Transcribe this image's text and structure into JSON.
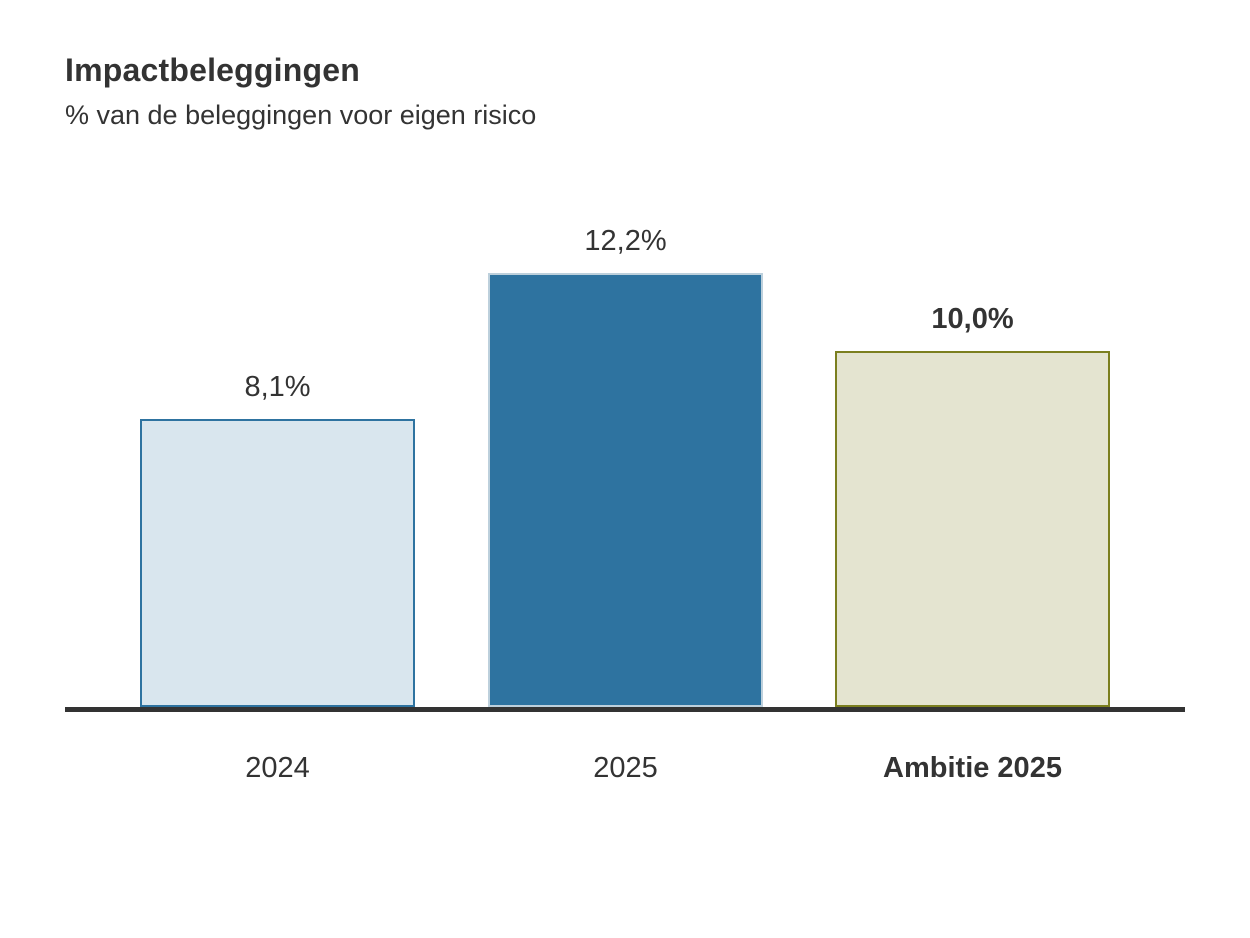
{
  "chart_data": {
    "type": "bar",
    "title": "Impactbeleggingen",
    "subtitle": "% van de beleggingen voor eigen risico",
    "xlabel": "",
    "ylabel": "% van de beleggingen voor eigen risico",
    "categories": [
      "2024",
      "2025",
      "Ambitie 2025"
    ],
    "values": [
      8.1,
      12.2,
      10.0
    ],
    "value_labels": [
      "8,1%",
      "12,2%",
      "10,0%"
    ],
    "ylim": [
      0,
      13
    ],
    "grid": false,
    "legend": "none",
    "bars": [
      {
        "category": "2024",
        "value": 8.1,
        "value_label": "8,1%",
        "fill": "#d9e6ee",
        "border": "#2e73a0",
        "emphasis": false
      },
      {
        "category": "2025",
        "value": 12.2,
        "value_label": "12,2%",
        "fill": "#2e73a0",
        "border": "#bdd0dc",
        "emphasis": false
      },
      {
        "category": "Ambitie 2025",
        "value": 10.0,
        "value_label": "10,0%",
        "fill": "#e4e4d0",
        "border": "#7b7f1f",
        "emphasis": true
      }
    ],
    "colors": {
      "axis": "#333333",
      "text": "#333333",
      "background": "#ffffff"
    }
  }
}
